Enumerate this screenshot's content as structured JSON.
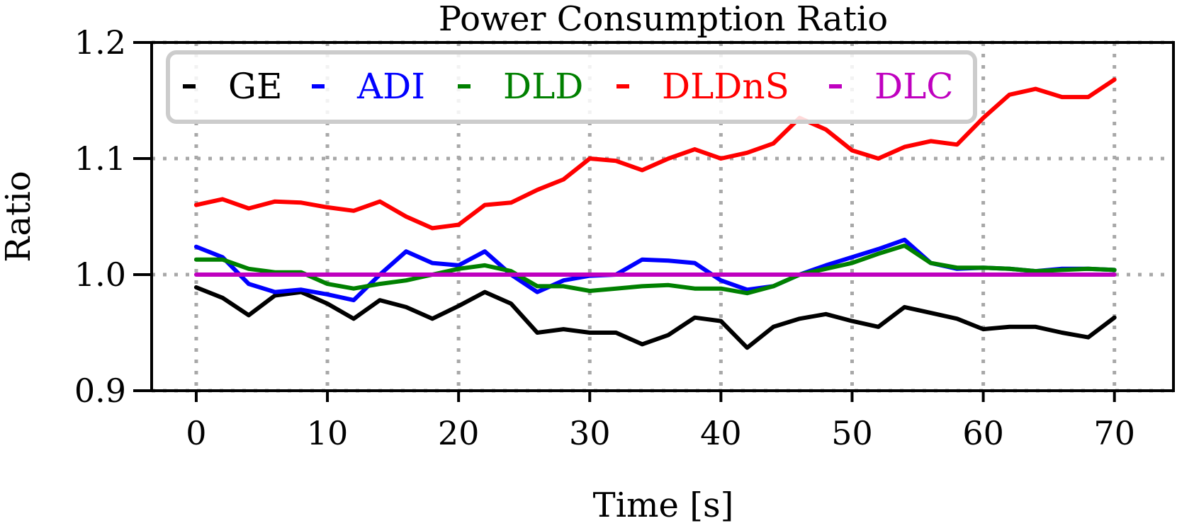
{
  "chart_data": {
    "type": "line",
    "title": "Power Consumption Ratio",
    "xlabel": "Time [s]",
    "ylabel": "Ratio",
    "xlim": [
      -3.4,
      74.5
    ],
    "ylim": [
      0.9,
      1.2
    ],
    "xticks": [
      0,
      10,
      20,
      30,
      40,
      50,
      60,
      70
    ],
    "xtick_labels": [
      "0",
      "10",
      "20",
      "30",
      "40",
      "50",
      "60",
      "70"
    ],
    "yticks": [
      0.9,
      1.0,
      1.1,
      1.2
    ],
    "ytick_labels": [
      "0.9",
      "1.0",
      "1.1",
      "1.2"
    ],
    "grid": true,
    "legend": {
      "placement": "top-left",
      "columns": 5
    },
    "x": [
      0,
      2,
      4,
      6,
      8,
      10,
      12,
      14,
      16,
      18,
      20,
      22,
      24,
      26,
      28,
      30,
      32,
      34,
      36,
      38,
      40,
      42,
      44,
      46,
      48,
      50,
      52,
      54,
      56,
      58,
      60,
      62,
      64,
      66,
      68,
      70
    ],
    "series": [
      {
        "name": "GE",
        "color": "#000000",
        "values": [
          0.989,
          0.98,
          0.965,
          0.982,
          0.985,
          0.975,
          0.962,
          0.978,
          0.972,
          0.962,
          0.973,
          0.985,
          0.975,
          0.95,
          0.953,
          0.95,
          0.95,
          0.94,
          0.948,
          0.963,
          0.96,
          0.937,
          0.955,
          0.962,
          0.966,
          0.96,
          0.955,
          0.972,
          0.967,
          0.962,
          0.953,
          0.955,
          0.955,
          0.95,
          0.946,
          0.963
        ]
      },
      {
        "name": "ADI",
        "color": "#0000ff",
        "values": [
          1.024,
          1.015,
          0.992,
          0.985,
          0.987,
          0.983,
          0.978,
          1.0,
          1.02,
          1.01,
          1.008,
          1.02,
          1.0,
          0.985,
          0.995,
          0.999,
          1.0,
          1.013,
          1.012,
          1.01,
          0.995,
          0.987,
          0.99,
          1.0,
          1.008,
          1.015,
          1.022,
          1.03,
          1.01,
          1.005,
          1.006,
          1.005,
          1.003,
          1.005,
          1.005,
          1.004
        ]
      },
      {
        "name": "DLD",
        "color": "#008000",
        "values": [
          1.013,
          1.013,
          1.005,
          1.002,
          1.002,
          0.992,
          0.988,
          0.992,
          0.995,
          1.0,
          1.005,
          1.008,
          1.003,
          0.99,
          0.99,
          0.986,
          0.988,
          0.99,
          0.991,
          0.988,
          0.988,
          0.984,
          0.99,
          1.0,
          1.005,
          1.01,
          1.018,
          1.025,
          1.01,
          1.006,
          1.006,
          1.005,
          1.003,
          1.004,
          1.005,
          1.004
        ]
      },
      {
        "name": "DLDnS",
        "color": "#ff0000",
        "values": [
          1.06,
          1.065,
          1.057,
          1.063,
          1.062,
          1.058,
          1.055,
          1.063,
          1.05,
          1.04,
          1.043,
          1.06,
          1.062,
          1.073,
          1.082,
          1.1,
          1.098,
          1.09,
          1.1,
          1.108,
          1.1,
          1.105,
          1.113,
          1.135,
          1.125,
          1.107,
          1.1,
          1.11,
          1.115,
          1.112,
          1.135,
          1.155,
          1.16,
          1.153,
          1.153,
          1.168
        ]
      },
      {
        "name": "DLC",
        "color": "#bf00bf",
        "values": [
          1.0,
          1.0,
          1.0,
          1.0,
          1.0,
          1.0,
          1.0,
          1.0,
          1.0,
          1.0,
          1.0,
          1.0,
          1.0,
          1.0,
          1.0,
          1.0,
          1.0,
          1.0,
          1.0,
          1.0,
          1.0,
          1.0,
          1.0,
          1.0,
          1.0,
          1.0,
          1.0,
          1.0,
          1.0,
          1.0,
          1.0,
          1.0,
          1.0,
          1.0,
          1.0,
          1.0
        ]
      }
    ]
  }
}
